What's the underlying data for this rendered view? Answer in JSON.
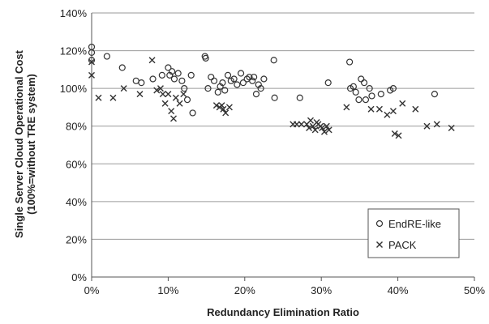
{
  "chart_data": {
    "type": "scatter",
    "xlabel": "Redundancy Elimination Ratio",
    "ylabel_line1": "Single Server Cloud Operational Cost",
    "ylabel_line2": "(100%=without TRE system)",
    "xlim": [
      0,
      50
    ],
    "ylim": [
      0,
      140
    ],
    "x_ticks": [
      0,
      10,
      20,
      30,
      40,
      50
    ],
    "y_ticks": [
      0,
      20,
      40,
      60,
      80,
      100,
      120,
      140
    ],
    "x_tick_labels": [
      "0%",
      "10%",
      "20%",
      "30%",
      "40%",
      "50%"
    ],
    "y_tick_labels": [
      "0%",
      "20%",
      "40%",
      "60%",
      "80%",
      "100%",
      "120%",
      "140%"
    ],
    "grid": "horizontal",
    "legend_position": "bottom-right",
    "series": [
      {
        "name": "EndRE-like",
        "marker": "circle",
        "points": [
          [
            0.0,
            122
          ],
          [
            0.0,
            119
          ],
          [
            0.0,
            115
          ],
          [
            2.0,
            117
          ],
          [
            4.0,
            111
          ],
          [
            5.8,
            104
          ],
          [
            6.5,
            103
          ],
          [
            8.0,
            105
          ],
          [
            9.2,
            107
          ],
          [
            10.0,
            111
          ],
          [
            10.2,
            107
          ],
          [
            10.5,
            109
          ],
          [
            10.8,
            105
          ],
          [
            11.3,
            108
          ],
          [
            11.8,
            104
          ],
          [
            12.1,
            100
          ],
          [
            12.5,
            94
          ],
          [
            13.0,
            107
          ],
          [
            13.2,
            87
          ],
          [
            14.8,
            117
          ],
          [
            14.9,
            116
          ],
          [
            15.2,
            100
          ],
          [
            15.6,
            106
          ],
          [
            16.0,
            104
          ],
          [
            16.5,
            98
          ],
          [
            16.8,
            101
          ],
          [
            17.1,
            103
          ],
          [
            17.4,
            99
          ],
          [
            17.8,
            107
          ],
          [
            18.2,
            104
          ],
          [
            18.6,
            105
          ],
          [
            19.0,
            102
          ],
          [
            19.5,
            108
          ],
          [
            19.8,
            103
          ],
          [
            20.3,
            105
          ],
          [
            20.6,
            106
          ],
          [
            21.0,
            104
          ],
          [
            21.2,
            106
          ],
          [
            21.5,
            97
          ],
          [
            21.8,
            102
          ],
          [
            22.1,
            100
          ],
          [
            22.5,
            105
          ],
          [
            23.8,
            115
          ],
          [
            23.9,
            95
          ],
          [
            27.2,
            95
          ],
          [
            30.9,
            103
          ],
          [
            33.7,
            114
          ],
          [
            33.8,
            100
          ],
          [
            34.2,
            101
          ],
          [
            34.5,
            98
          ],
          [
            34.9,
            94
          ],
          [
            35.2,
            105
          ],
          [
            35.6,
            103
          ],
          [
            35.8,
            94
          ],
          [
            36.3,
            100
          ],
          [
            36.6,
            96
          ],
          [
            37.8,
            97
          ],
          [
            39.0,
            99
          ],
          [
            39.4,
            100
          ],
          [
            44.8,
            97
          ]
        ]
      },
      {
        "name": "PACK",
        "marker": "cross",
        "points": [
          [
            0.0,
            114
          ],
          [
            0.0,
            107
          ],
          [
            0.9,
            95
          ],
          [
            2.8,
            95
          ],
          [
            4.2,
            100
          ],
          [
            6.3,
            97
          ],
          [
            7.9,
            115
          ],
          [
            8.5,
            99
          ],
          [
            9.0,
            100
          ],
          [
            9.3,
            97
          ],
          [
            9.6,
            92
          ],
          [
            10.0,
            97
          ],
          [
            10.4,
            88
          ],
          [
            10.7,
            84
          ],
          [
            11.0,
            95
          ],
          [
            11.5,
            92
          ],
          [
            12.0,
            97
          ],
          [
            16.3,
            91
          ],
          [
            16.7,
            90
          ],
          [
            17.0,
            91
          ],
          [
            17.2,
            89
          ],
          [
            17.5,
            87
          ],
          [
            18.0,
            90
          ],
          [
            26.3,
            81
          ],
          [
            26.8,
            81
          ],
          [
            27.4,
            81
          ],
          [
            28.1,
            81
          ],
          [
            28.4,
            79
          ],
          [
            28.6,
            83
          ],
          [
            28.9,
            80
          ],
          [
            29.2,
            78
          ],
          [
            29.4,
            82
          ],
          [
            29.6,
            81
          ],
          [
            29.9,
            80
          ],
          [
            30.1,
            79
          ],
          [
            30.4,
            77
          ],
          [
            30.7,
            80
          ],
          [
            31.0,
            78
          ],
          [
            33.3,
            90
          ],
          [
            36.5,
            89
          ],
          [
            37.6,
            89
          ],
          [
            38.6,
            86
          ],
          [
            39.4,
            88
          ],
          [
            39.6,
            76
          ],
          [
            40.1,
            75
          ],
          [
            40.6,
            92
          ],
          [
            42.3,
            89
          ],
          [
            43.8,
            80
          ],
          [
            45.1,
            81
          ],
          [
            47.0,
            79
          ]
        ]
      }
    ]
  }
}
